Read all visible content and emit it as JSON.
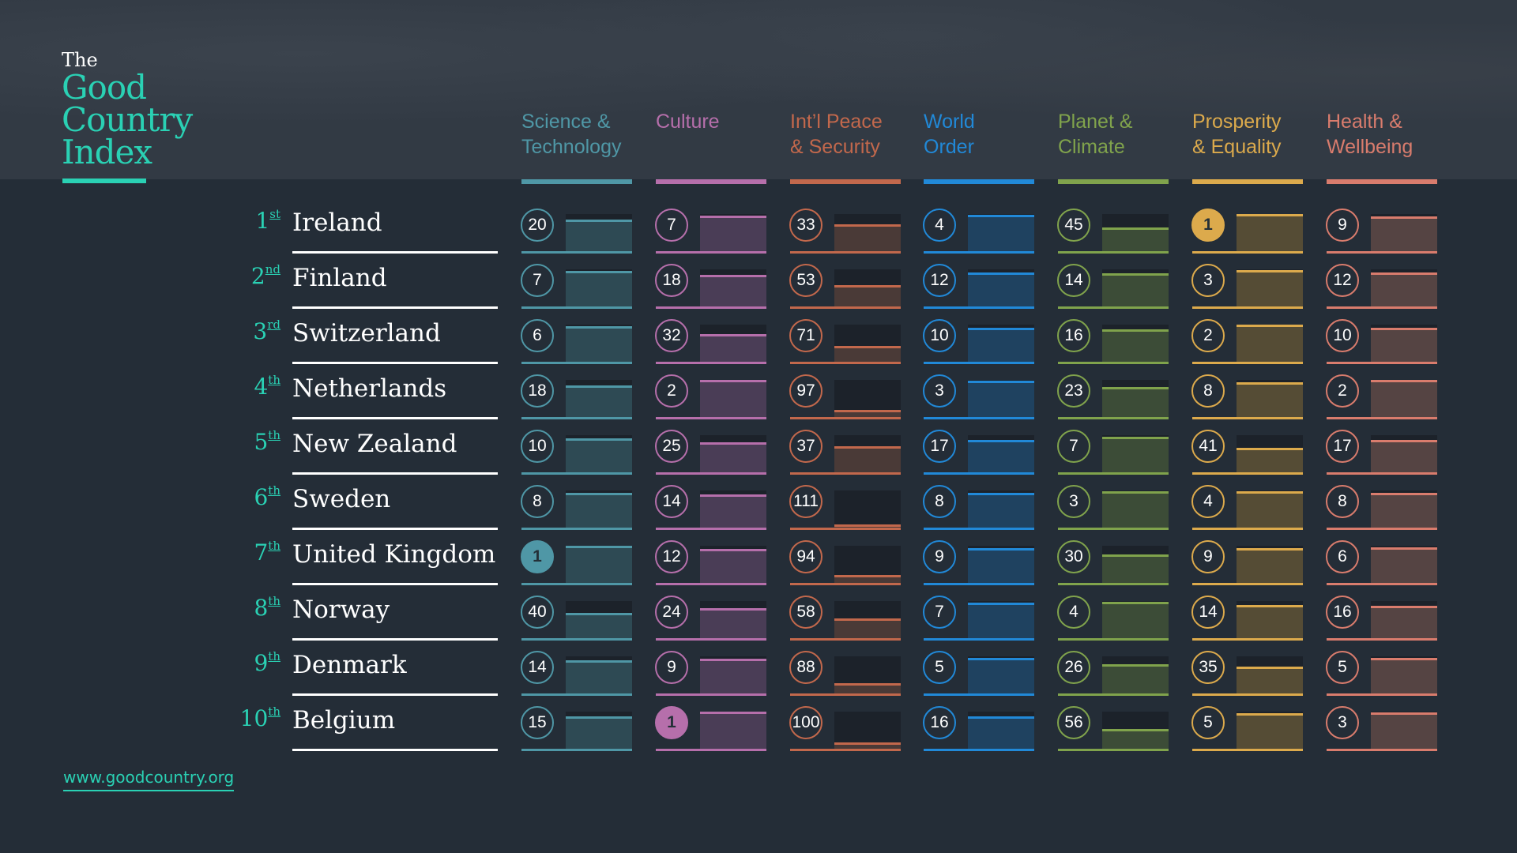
{
  "title": {
    "the": "The",
    "line1": "Good",
    "line2": "Country",
    "line3": "Index"
  },
  "categories": [
    {
      "line1": "Science &",
      "line2": "Technology",
      "color": "#4f97a6",
      "fill": "#2e4a54"
    },
    {
      "line1": "Culture",
      "line2": "",
      "color": "#b66fab",
      "fill": "#4a3d56"
    },
    {
      "line1": "Int’l Peace",
      "line2": "& Security",
      "color": "#c2684c",
      "fill": "#4a3a37"
    },
    {
      "line1": "World",
      "line2": "Order",
      "color": "#2189d8",
      "fill": "#1f4260"
    },
    {
      "line1": "Planet &",
      "line2": "Climate",
      "color": "#80a34c",
      "fill": "#3c4c37"
    },
    {
      "line1": "Prosperity",
      "line2": "& Equality",
      "color": "#dcaa4c",
      "fill": "#554c35"
    },
    {
      "line1": "Health &",
      "line2": "Wellbeing",
      "color": "#d97c6d",
      "fill": "#554443"
    }
  ],
  "countries": [
    {
      "rank": "1",
      "suffix": "st",
      "name": "Ireland",
      "scores": [
        20,
        7,
        33,
        4,
        45,
        1,
        9
      ]
    },
    {
      "rank": "2",
      "suffix": "nd",
      "name": "Finland",
      "scores": [
        7,
        18,
        53,
        12,
        14,
        3,
        12
      ]
    },
    {
      "rank": "3",
      "suffix": "rd",
      "name": "Switzerland",
      "scores": [
        6,
        32,
        71,
        10,
        16,
        2,
        10
      ]
    },
    {
      "rank": "4",
      "suffix": "th",
      "name": "Netherlands",
      "scores": [
        18,
        2,
        97,
        3,
        23,
        8,
        2
      ]
    },
    {
      "rank": "5",
      "suffix": "th",
      "name": "New Zealand",
      "scores": [
        10,
        25,
        37,
        17,
        7,
        41,
        17
      ]
    },
    {
      "rank": "6",
      "suffix": "th",
      "name": "Sweden",
      "scores": [
        8,
        14,
        111,
        8,
        3,
        4,
        8
      ]
    },
    {
      "rank": "7",
      "suffix": "th",
      "name": "United Kingdom",
      "scores": [
        1,
        12,
        94,
        9,
        30,
        9,
        6
      ]
    },
    {
      "rank": "8",
      "suffix": "th",
      "name": "Norway",
      "scores": [
        40,
        24,
        58,
        7,
        4,
        14,
        16
      ]
    },
    {
      "rank": "9",
      "suffix": "th",
      "name": "Denmark",
      "scores": [
        14,
        9,
        88,
        5,
        26,
        35,
        5
      ]
    },
    {
      "rank": "10",
      "suffix": "th",
      "name": "Belgium",
      "scores": [
        15,
        1,
        100,
        16,
        56,
        5,
        3
      ]
    }
  ],
  "footer": {
    "url": "www.goodcountry.org"
  }
}
